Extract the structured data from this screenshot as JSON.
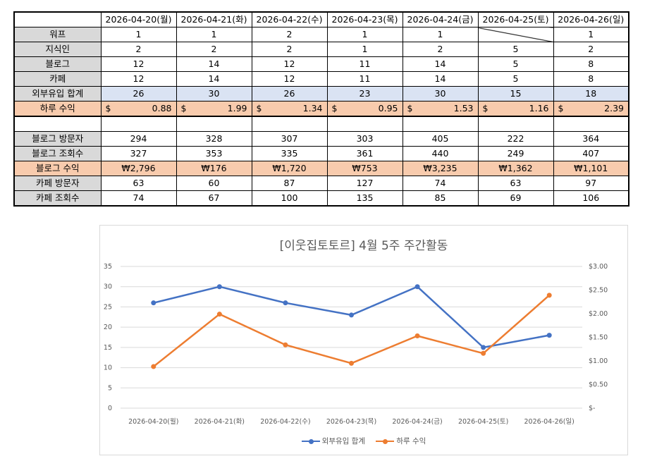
{
  "table": {
    "dates": [
      "2026-04-20(월)",
      "2026-04-21(화)",
      "2026-04-22(수)",
      "2026-04-23(목)",
      "2026-04-24(금)",
      "2026-04-25(토)",
      "2026-04-26(일)"
    ],
    "rows_top": [
      {
        "label": "워프",
        "values": [
          "1",
          "1",
          "2",
          "1",
          "1",
          null,
          "1"
        ]
      },
      {
        "label": "지식인",
        "values": [
          "2",
          "2",
          "2",
          "1",
          "2",
          "5",
          "2"
        ]
      },
      {
        "label": "블로그",
        "values": [
          "12",
          "14",
          "12",
          "11",
          "14",
          "5",
          "8"
        ]
      },
      {
        "label": "카페",
        "values": [
          "12",
          "14",
          "12",
          "11",
          "14",
          "5",
          "8"
        ]
      }
    ],
    "sum_row": {
      "label": "외부유입 합계",
      "values": [
        "26",
        "30",
        "26",
        "23",
        "30",
        "15",
        "18"
      ]
    },
    "daily_revenue": {
      "label": "하루 수익",
      "currency": "$",
      "values": [
        "0.88",
        "1.99",
        "1.34",
        "0.95",
        "1.53",
        "1.16",
        "2.39"
      ]
    },
    "rows_bottom": [
      {
        "label": "블로그 방문자",
        "values": [
          "294",
          "328",
          "307",
          "303",
          "405",
          "222",
          "364"
        ]
      },
      {
        "label": "블로그 조회수",
        "values": [
          "327",
          "353",
          "335",
          "361",
          "440",
          "249",
          "407"
        ]
      }
    ],
    "blog_revenue": {
      "label": "블로그 수익",
      "values": [
        "₩2,796",
        "₩176",
        "₩1,720",
        "₩753",
        "₩3,235",
        "₩1,362",
        "₩1,101"
      ]
    },
    "rows_last": [
      {
        "label": "카페 방문자",
        "values": [
          "63",
          "60",
          "87",
          "127",
          "74",
          "63",
          "97"
        ]
      },
      {
        "label": "카페 조회수",
        "values": [
          "74",
          "67",
          "100",
          "135",
          "85",
          "69",
          "106"
        ]
      }
    ]
  },
  "chart_data": {
    "type": "line",
    "title": "[이웃집토토르] 4월 5주 주간활동",
    "categories": [
      "2026-04-20(월)",
      "2026-04-21(화)",
      "2026-04-22(수)",
      "2026-04-23(목)",
      "2026-04-24(금)",
      "2026-04-25(토)",
      "2026-04-26(일)"
    ],
    "series": [
      {
        "name": "외부유입 합계",
        "axis": "left",
        "color": "#4472c4",
        "values": [
          26,
          30,
          26,
          23,
          30,
          15,
          18
        ]
      },
      {
        "name": "하루 수익",
        "axis": "right",
        "color": "#ed7d31",
        "values": [
          0.88,
          1.99,
          1.34,
          0.95,
          1.53,
          1.16,
          2.39
        ]
      }
    ],
    "y_left": {
      "min": 0,
      "max": 35,
      "ticks": [
        "0",
        "5",
        "10",
        "15",
        "20",
        "25",
        "30",
        "35"
      ]
    },
    "y_right": {
      "min": 0,
      "max": 3,
      "ticks": [
        "$-",
        "$0.50",
        "$1.00",
        "$1.50",
        "$2.00",
        "$2.50",
        "$3.00"
      ]
    },
    "grid": true,
    "legend_position": "bottom"
  }
}
